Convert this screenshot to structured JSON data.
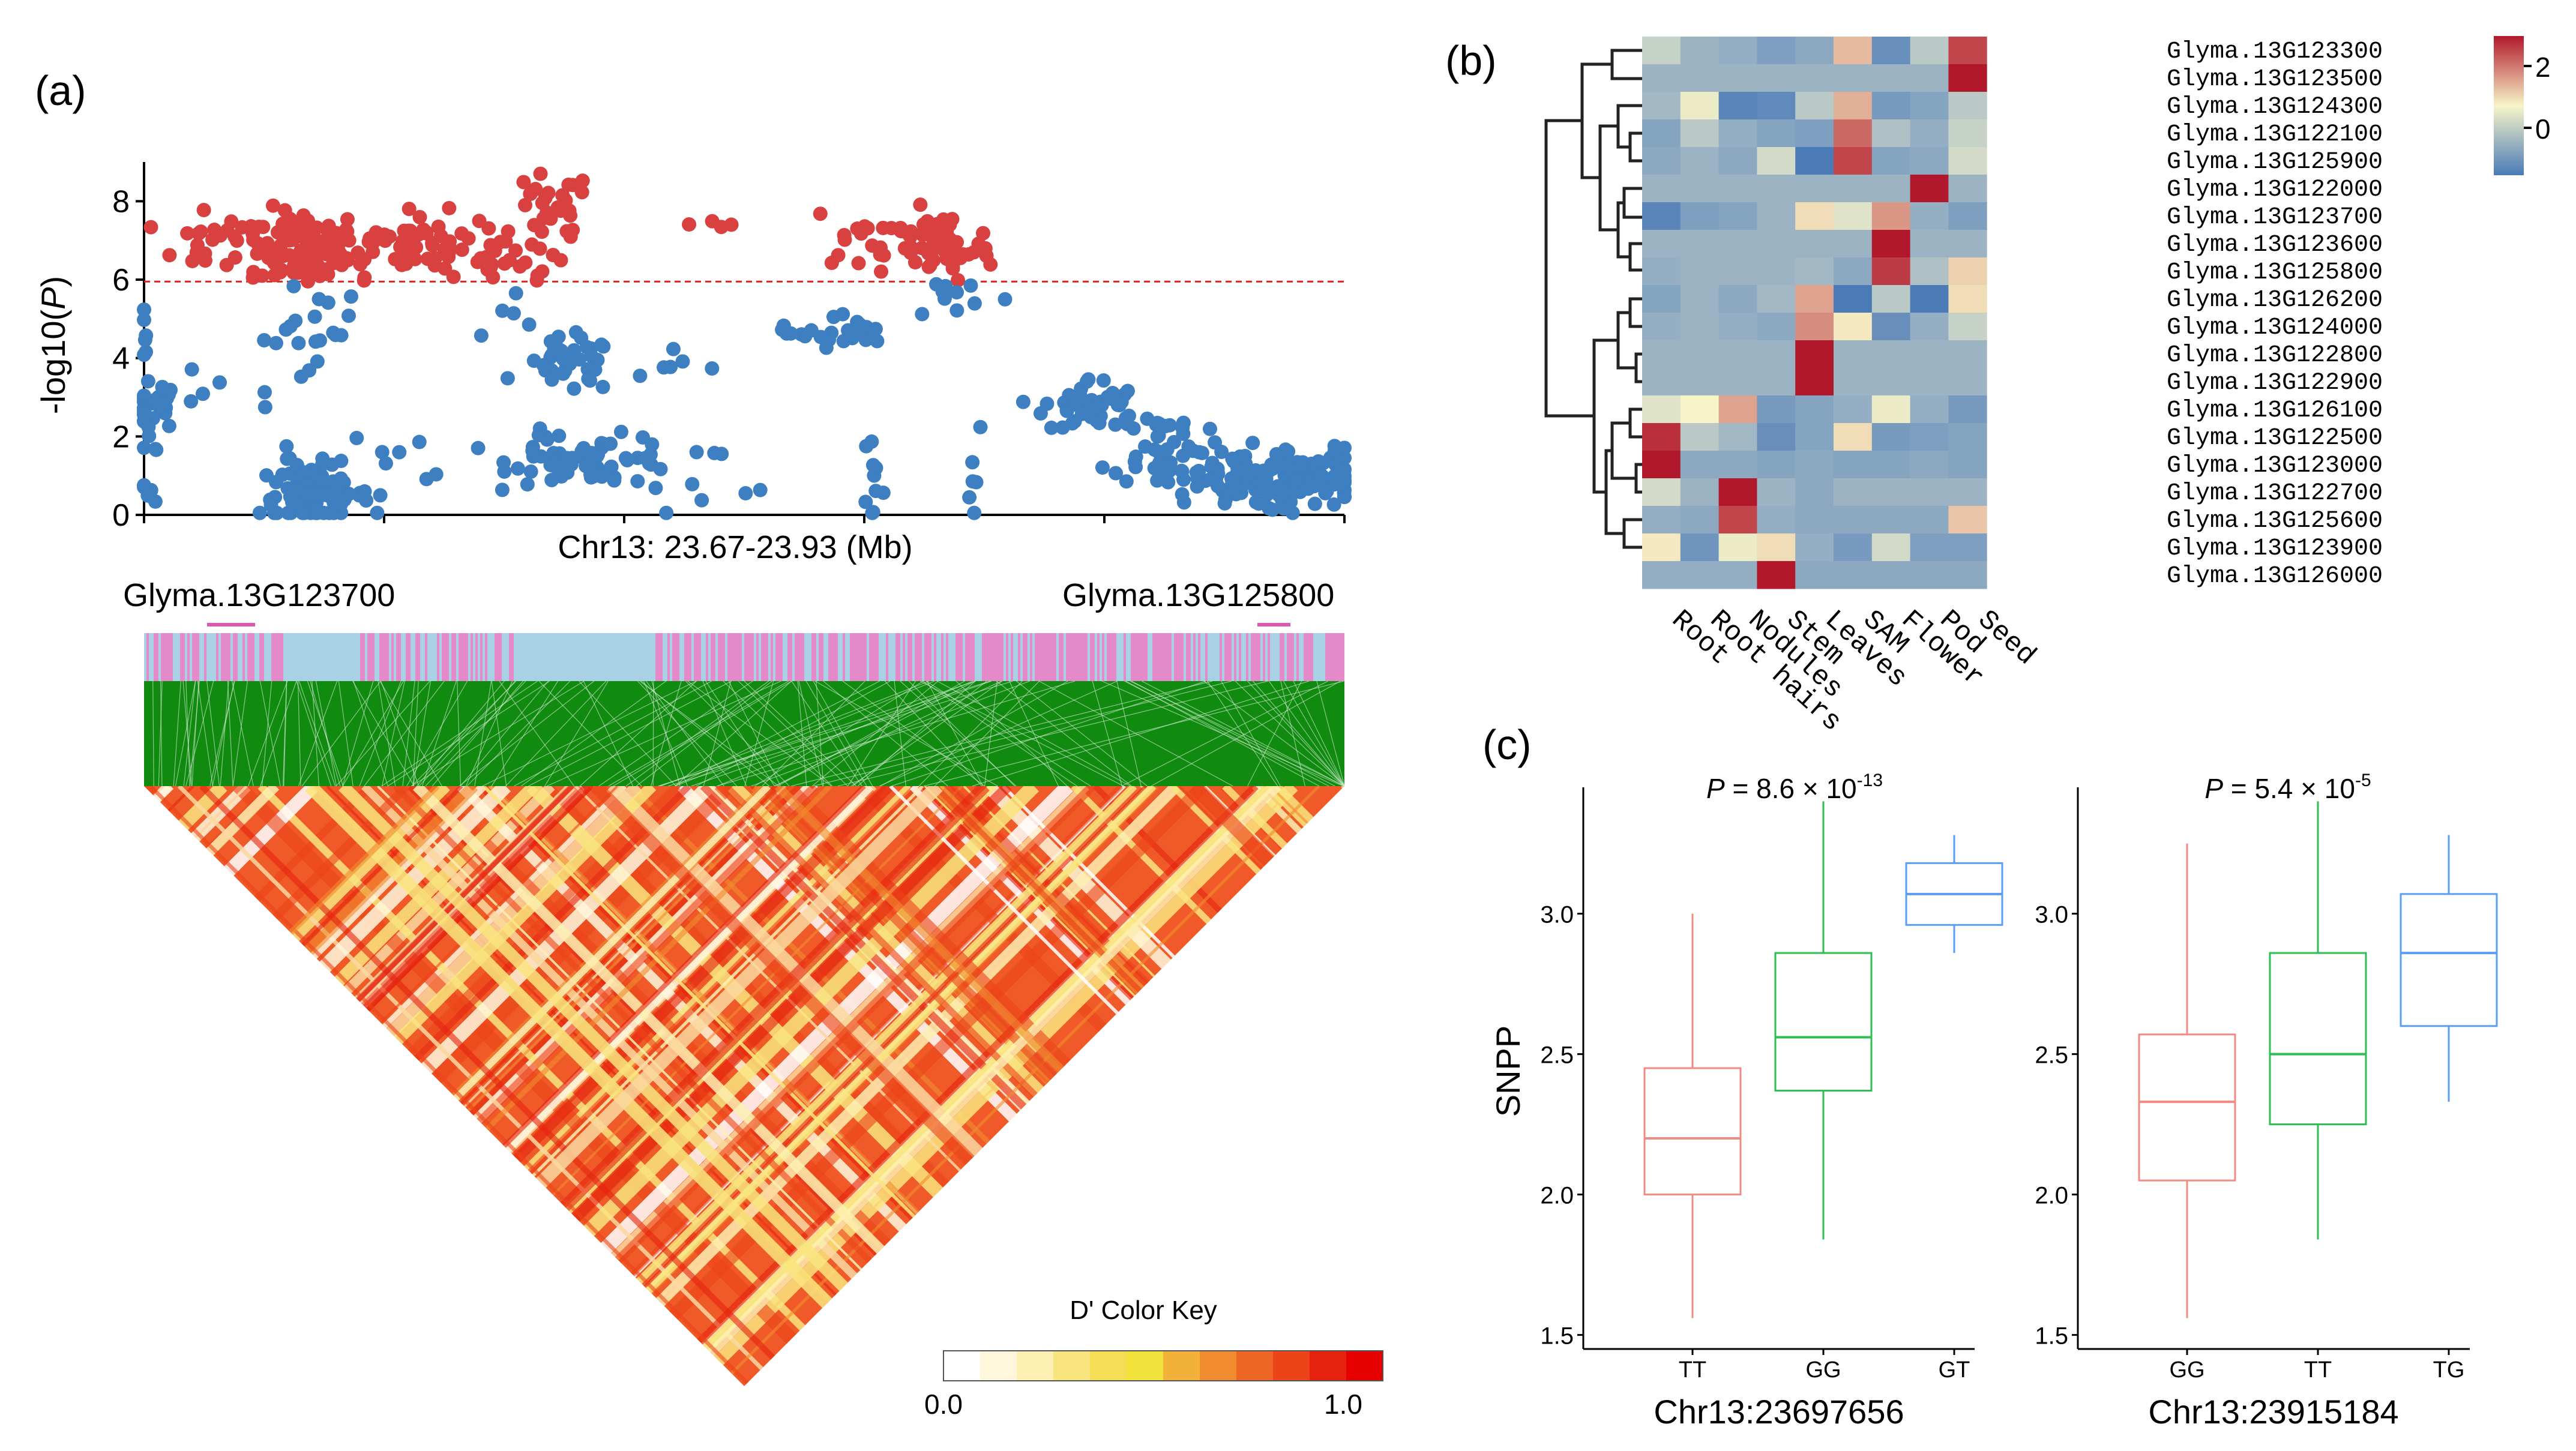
{
  "colors": {
    "sig_red": "#d94141",
    "nonsig_blue": "#3d7fc1",
    "threshold": "#e32020",
    "ld_track_pink": "#e58ac8",
    "ld_track_blue": "#a9d1e6",
    "ld_lines": "#108b10",
    "box_left": "#f28b82",
    "box_mid": "#2dbf52",
    "box_right": "#5b9df5",
    "heat_low": "#4a7bb7",
    "heat_mid": "#f7f4c8",
    "heat_high": "#b2182b",
    "heat_base": "#a3b8c5"
  },
  "panel_a": {
    "label": "(a)",
    "xlabel": "Chr13: 23.67-23.93 (Mb)",
    "ylabel_prefix": "-log10(",
    "ylabel_italic": "P",
    "ylabel_suffix": ")",
    "gene_left": "Glyma.13G123700",
    "gene_right": "Glyma.13G125800",
    "color_key_title": "D' Color Key",
    "color_key_min": "0.0",
    "color_key_max": "1.0",
    "color_key_colors": [
      "#ffffff",
      "#fff7dc",
      "#fdf0b2",
      "#f9e57e",
      "#f5dd56",
      "#f1e33b",
      "#f2b23a",
      "#f08c2f",
      "#ee6624",
      "#ec4319",
      "#e6230f",
      "#e60000"
    ]
  },
  "panel_b": {
    "label": "(b)",
    "legend_ticks": [
      "2",
      "0"
    ]
  },
  "panel_c": {
    "label": "(c)",
    "ylabel": "SNPP",
    "y_ticks": [
      "3.0",
      "2.5",
      "2.0",
      "1.5"
    ],
    "p_italic": "P",
    "left": {
      "p_text": " = 8.6 × 10",
      "p_exp": "-13",
      "xlabel": "Chr13:23697656"
    },
    "right": {
      "p_text": " = 5.4 × 10",
      "p_exp": "-5",
      "xlabel": "Chr13:23915184"
    }
  },
  "chart_data": [
    {
      "type": "scatter",
      "title": "",
      "xlabel": "Chr13: 23.67-23.93 (Mb)",
      "ylabel": "-log10(P)",
      "xlim": [
        23.67,
        23.93
      ],
      "ylim": [
        0,
        9
      ],
      "y_ticks": [
        0,
        2,
        4,
        6,
        8
      ],
      "threshold": 5.95,
      "point_clusters": [
        {
          "x": 23.67,
          "y": 4.4,
          "n": 6,
          "sx": 0.001,
          "sy": 0.6
        },
        {
          "x": 23.672,
          "y": 2.8,
          "n": 30,
          "sx": 0.003,
          "sy": 0.3
        },
        {
          "x": 23.671,
          "y": 0.8,
          "n": 8,
          "sx": 0.001,
          "sy": 0.6
        },
        {
          "x": 23.688,
          "y": 6.9,
          "n": 30,
          "sx": 0.008,
          "sy": 0.35
        },
        {
          "x": 23.705,
          "y": 6.8,
          "n": 80,
          "sx": 0.006,
          "sy": 0.5
        },
        {
          "x": 23.728,
          "y": 6.9,
          "n": 80,
          "sx": 0.01,
          "sy": 0.4
        },
        {
          "x": 23.748,
          "y": 6.7,
          "n": 14,
          "sx": 0.004,
          "sy": 0.3
        },
        {
          "x": 23.706,
          "y": 4.8,
          "n": 25,
          "sx": 0.005,
          "sy": 0.9
        },
        {
          "x": 23.707,
          "y": 0.5,
          "n": 80,
          "sx": 0.006,
          "sy": 0.4
        },
        {
          "x": 23.722,
          "y": 1.5,
          "n": 10,
          "sx": 0.01,
          "sy": 0.9
        },
        {
          "x": 23.683,
          "y": 3.3,
          "n": 4,
          "sx": 0.003,
          "sy": 0.4
        },
        {
          "x": 23.697,
          "y": 2.8,
          "n": 2,
          "sx": 0.002,
          "sy": 0.1
        },
        {
          "x": 23.755,
          "y": 5.0,
          "n": 8,
          "sx": 0.01,
          "sy": 0.8
        },
        {
          "x": 23.757,
          "y": 7.9,
          "n": 22,
          "sx": 0.005,
          "sy": 0.4
        },
        {
          "x": 23.76,
          "y": 6.8,
          "n": 8,
          "sx": 0.004,
          "sy": 0.4
        },
        {
          "x": 23.762,
          "y": 3.8,
          "n": 35,
          "sx": 0.005,
          "sy": 0.35
        },
        {
          "x": 23.768,
          "y": 1.4,
          "n": 60,
          "sx": 0.009,
          "sy": 0.3
        },
        {
          "x": 23.757,
          "y": 1.9,
          "n": 8,
          "sx": 0.002,
          "sy": 0.2
        },
        {
          "x": 23.78,
          "y": 3.9,
          "n": 6,
          "sx": 0.01,
          "sy": 0.3
        },
        {
          "x": 23.79,
          "y": 1.1,
          "n": 10,
          "sx": 0.012,
          "sy": 0.3
        },
        {
          "x": 23.795,
          "y": 7.4,
          "n": 4,
          "sx": 0.003,
          "sy": 0.1
        },
        {
          "x": 23.812,
          "y": 4.6,
          "n": 10,
          "sx": 0.004,
          "sy": 0.1
        },
        {
          "x": 23.822,
          "y": 4.6,
          "n": 14,
          "sx": 0.005,
          "sy": 0.3
        },
        {
          "x": 23.826,
          "y": 7.1,
          "n": 20,
          "sx": 0.006,
          "sy": 0.4
        },
        {
          "x": 23.842,
          "y": 6.8,
          "n": 60,
          "sx": 0.006,
          "sy": 0.45
        },
        {
          "x": 23.828,
          "y": 1.0,
          "n": 10,
          "sx": 0.001,
          "sy": 0.7
        },
        {
          "x": 23.847,
          "y": 5.6,
          "n": 10,
          "sx": 0.006,
          "sy": 0.3
        },
        {
          "x": 23.85,
          "y": 1.5,
          "n": 6,
          "sx": 0.001,
          "sy": 0.8
        },
        {
          "x": 23.875,
          "y": 2.8,
          "n": 45,
          "sx": 0.005,
          "sy": 0.35
        },
        {
          "x": 23.89,
          "y": 1.8,
          "n": 40,
          "sx": 0.005,
          "sy": 0.5
        },
        {
          "x": 23.905,
          "y": 0.9,
          "n": 70,
          "sx": 0.008,
          "sy": 0.4
        },
        {
          "x": 23.922,
          "y": 0.9,
          "n": 70,
          "sx": 0.007,
          "sy": 0.4
        }
      ]
    },
    {
      "type": "heatmap",
      "title": "",
      "columns": [
        "Root",
        "Root hairs",
        "Nodules",
        "Stem",
        "Leaves",
        "SAM",
        "Flower",
        "Pod",
        "Seed"
      ],
      "rows": [
        "Glyma.13G123300",
        "Glyma.13G123500",
        "Glyma.13G124300",
        "Glyma.13G122100",
        "Glyma.13G125900",
        "Glyma.13G122000",
        "Glyma.13G123700",
        "Glyma.13G123600",
        "Glyma.13G125800",
        "Glyma.13G126200",
        "Glyma.13G124000",
        "Glyma.13G122800",
        "Glyma.13G122900",
        "Glyma.13G126100",
        "Glyma.13G122500",
        "Glyma.13G123000",
        "Glyma.13G122700",
        "Glyma.13G125600",
        "Glyma.13G123900",
        "Glyma.13G126000"
      ],
      "values": [
        [
          0.3,
          -0.1,
          -0.2,
          -0.5,
          -0.3,
          1.2,
          -0.8,
          0.2,
          2.2
        ],
        [
          -0.1,
          -0.1,
          -0.1,
          -0.1,
          -0.1,
          -0.1,
          -0.1,
          -0.1,
          3.0
        ],
        [
          0.0,
          0.6,
          -1.0,
          -0.9,
          0.2,
          1.3,
          -0.6,
          -0.4,
          0.2
        ],
        [
          -0.4,
          0.2,
          -0.2,
          -0.4,
          -0.5,
          1.9,
          0.1,
          -0.2,
          0.3
        ],
        [
          -0.3,
          -0.1,
          -0.3,
          0.4,
          -1.2,
          2.2,
          -0.4,
          -0.3,
          0.4
        ],
        [
          -0.1,
          -0.1,
          -0.1,
          -0.1,
          -0.1,
          -0.1,
          -0.1,
          3.0,
          -0.1
        ],
        [
          -1.0,
          -0.5,
          -0.4,
          -0.1,
          0.9,
          0.5,
          1.5,
          -0.2,
          -0.5
        ],
        [
          -0.1,
          -0.1,
          -0.1,
          -0.1,
          -0.1,
          -0.1,
          3.0,
          -0.1,
          -0.1
        ],
        [
          -0.2,
          -0.1,
          -0.1,
          -0.1,
          0.0,
          -0.3,
          2.3,
          0.1,
          1.0
        ],
        [
          -0.4,
          -0.1,
          -0.3,
          0.0,
          1.4,
          -1.2,
          0.2,
          -1.2,
          0.9
        ],
        [
          -0.2,
          -0.1,
          -0.2,
          -0.3,
          1.6,
          0.8,
          -0.8,
          -0.2,
          0.3
        ],
        [
          -0.1,
          -0.1,
          -0.1,
          -0.1,
          3.0,
          -0.1,
          -0.1,
          -0.1,
          -0.1
        ],
        [
          -0.1,
          -0.1,
          -0.1,
          -0.1,
          3.0,
          -0.1,
          -0.1,
          -0.1,
          -0.1
        ],
        [
          0.5,
          0.7,
          1.4,
          -0.6,
          -0.4,
          -0.2,
          0.6,
          -0.2,
          -0.6
        ],
        [
          2.4,
          0.2,
          0.0,
          -0.8,
          -0.4,
          0.9,
          -0.6,
          -0.5,
          -0.4
        ],
        [
          3.0,
          -0.3,
          -0.3,
          -0.4,
          -0.3,
          -0.4,
          -0.4,
          -0.3,
          -0.4
        ],
        [
          0.4,
          -0.1,
          2.6,
          -0.1,
          -0.3,
          -0.1,
          -0.1,
          -0.1,
          -0.1
        ],
        [
          -0.2,
          -0.3,
          2.2,
          -0.2,
          -0.3,
          -0.3,
          -0.3,
          -0.3,
          1.1
        ],
        [
          0.8,
          -0.7,
          0.6,
          0.9,
          -0.2,
          -0.6,
          0.4,
          -0.5,
          -0.5
        ],
        [
          -0.2,
          -0.2,
          -0.2,
          3.0,
          -0.3,
          -0.3,
          -0.3,
          -0.3,
          -0.3
        ]
      ],
      "color_range": [
        -1.2,
        2.6
      ],
      "legend_ticks": [
        2,
        0
      ]
    },
    {
      "type": "box",
      "title": "P = 8.6 × 10-13",
      "xlabel": "Chr13:23697656",
      "ylabel": "SNPP",
      "ylim": [
        1.45,
        3.45
      ],
      "categories": [
        "TT",
        "GG",
        "GT"
      ],
      "boxes": [
        {
          "category": "TT",
          "min": 1.56,
          "q1": 2.0,
          "median": 2.2,
          "q3": 2.45,
          "max": 3.0
        },
        {
          "category": "GG",
          "min": 1.84,
          "q1": 2.37,
          "median": 2.56,
          "q3": 2.86,
          "max": 3.4
        },
        {
          "category": "GT",
          "min": 2.86,
          "q1": 2.96,
          "median": 3.07,
          "q3": 3.18,
          "max": 3.28
        }
      ]
    },
    {
      "type": "box",
      "title": "P = 5.4 × 10-5",
      "xlabel": "Chr13:23915184",
      "ylabel": "",
      "ylim": [
        1.45,
        3.45
      ],
      "categories": [
        "GG",
        "TT",
        "TG"
      ],
      "boxes": [
        {
          "category": "GG",
          "min": 1.56,
          "q1": 2.05,
          "median": 2.33,
          "q3": 2.57,
          "max": 3.25
        },
        {
          "category": "TT",
          "min": 1.84,
          "q1": 2.25,
          "median": 2.5,
          "q3": 2.86,
          "max": 3.4
        },
        {
          "category": "TG",
          "min": 2.33,
          "q1": 2.6,
          "median": 2.86,
          "q3": 3.07,
          "max": 3.28
        }
      ]
    }
  ]
}
